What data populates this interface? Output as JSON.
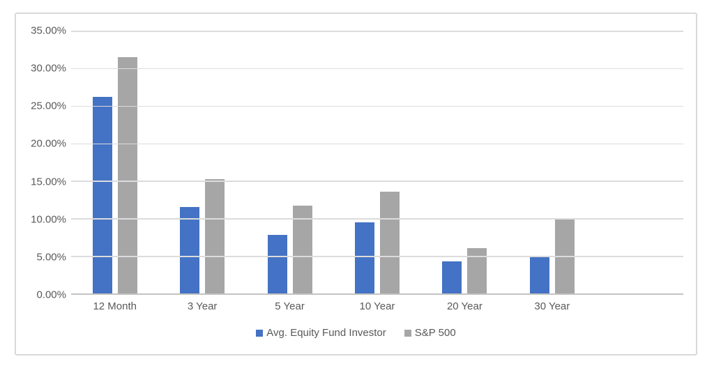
{
  "colors": {
    "background": "#FFFFFF",
    "frame_border": "#D9D9D9",
    "gridline": "#DCDCDC",
    "axis_line": "#C3C3C3",
    "text": "#595959",
    "series_blue": "#4472C4",
    "series_gray": "#A6A6A6"
  },
  "chart_data": {
    "type": "bar",
    "title": "",
    "xlabel": "",
    "ylabel": "",
    "categories": [
      "12 Month",
      "3 Year",
      "5 Year",
      "10 Year",
      "20 Year",
      "30 Year"
    ],
    "series": [
      {
        "name": "Avg. Equity Fund Investor",
        "color": "#4472C4",
        "values": [
          26.14,
          11.49,
          7.79,
          9.43,
          4.25,
          5.04
        ]
      },
      {
        "name": "S&P 500",
        "color": "#A6A6A6",
        "values": [
          31.49,
          15.27,
          11.7,
          13.56,
          6.06,
          9.96
        ]
      }
    ],
    "ylim": [
      0,
      35
    ],
    "y_tick_step": 5,
    "y_tick_labels": [
      "35.00%",
      "30.00%",
      "25.00%",
      "20.00%",
      "15.00%",
      "10.00%",
      "5.00%",
      "0.00%"
    ],
    "grid": true,
    "legend_position": "bottom",
    "extra_right_category_slots": 1
  }
}
